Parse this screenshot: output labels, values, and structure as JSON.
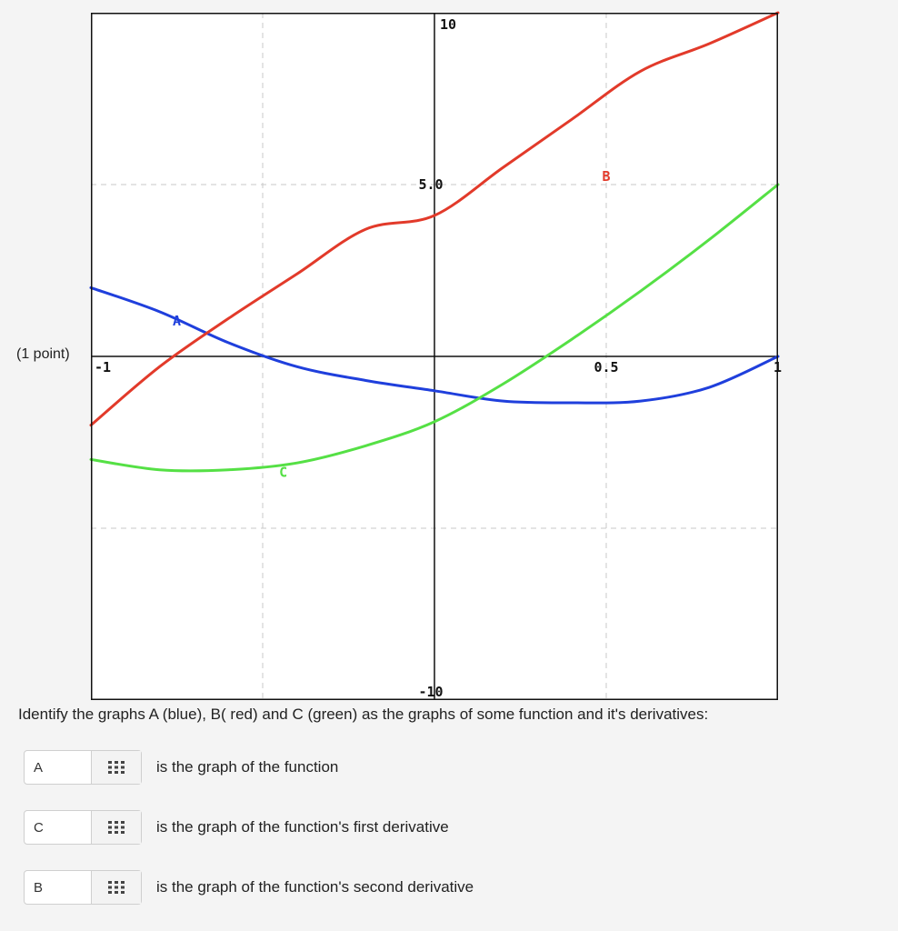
{
  "point_label": "(1 point)",
  "question": "Identify the graphs A (blue), B( red) and C (green) as the graphs of some function and it's derivatives:",
  "answers": [
    {
      "value": "A",
      "text": "is the graph of the function"
    },
    {
      "value": "C",
      "text": "is the graph of the function's first derivative"
    },
    {
      "value": "B",
      "text": "is the graph of the function's second derivative"
    }
  ],
  "chart_data": {
    "type": "line",
    "xlim": [
      -1,
      1
    ],
    "ylim": [
      -10,
      10
    ],
    "grid": true,
    "x_tick_labels": [
      {
        "x": -1,
        "label": "-1"
      },
      {
        "x": 0.5,
        "label": "0.5"
      },
      {
        "x": 1,
        "label": "1"
      }
    ],
    "y_tick_labels": [
      {
        "y": 10,
        "label": "10"
      },
      {
        "y": 5,
        "label": "5.0"
      },
      {
        "y": -10,
        "label": "-10"
      }
    ],
    "series": [
      {
        "name": "A",
        "color": "#1f3fdc",
        "x": [
          -1,
          -0.8,
          -0.6,
          -0.4,
          -0.2,
          0,
          0.2,
          0.4,
          0.6,
          0.8,
          1
        ],
        "y": [
          2.0,
          1.3,
          0.4,
          -0.3,
          -0.7,
          -1.0,
          -1.3,
          -1.35,
          -1.3,
          -0.9,
          0.0
        ]
      },
      {
        "name": "B",
        "color": "#e23a2a",
        "x": [
          -1,
          -0.8,
          -0.6,
          -0.4,
          -0.2,
          0,
          0.2,
          0.4,
          0.6,
          0.8,
          1
        ],
        "y": [
          -2.0,
          -0.3,
          1.1,
          2.4,
          3.7,
          4.1,
          5.5,
          6.9,
          8.3,
          9.1,
          10.0
        ]
      },
      {
        "name": "C",
        "color": "#55e045",
        "x": [
          -1,
          -0.8,
          -0.6,
          -0.4,
          -0.2,
          0,
          0.2,
          0.4,
          0.6,
          0.8,
          1
        ],
        "y": [
          -3.0,
          -3.3,
          -3.3,
          -3.1,
          -2.6,
          -1.9,
          -0.8,
          0.5,
          1.9,
          3.4,
          5.0
        ]
      }
    ],
    "series_labels": [
      {
        "name": "A",
        "x": -0.75,
        "y": 0.9
      },
      {
        "name": "B",
        "x": 0.5,
        "y": 5.1
      },
      {
        "name": "C",
        "x": -0.44,
        "y": -3.5
      }
    ]
  }
}
